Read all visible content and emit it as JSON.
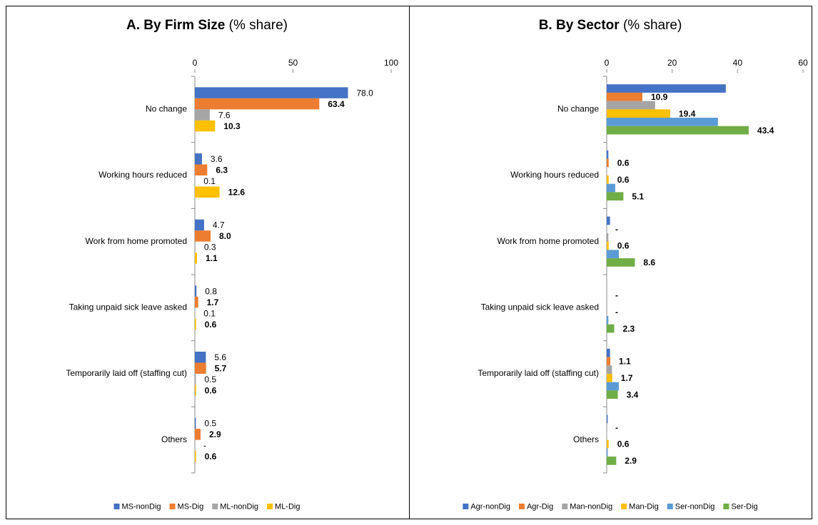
{
  "chart_data": [
    {
      "type": "bar",
      "orientation": "horizontal",
      "title": "A. By Firm Size",
      "title_unit": "(% share)",
      "categories": [
        "No change",
        "Working hours reduced",
        "Work from home promoted",
        "Taking unpaid sick leave asked",
        "Temporarily laid off (staffing cut)",
        "Others"
      ],
      "xlim": [
        0,
        100
      ],
      "xticks": [
        0,
        50,
        100
      ],
      "legend": "bottom",
      "series": [
        {
          "name": "MS-nonDig",
          "color": "#4472c4",
          "label_color": "#4472c4",
          "label_bold": false,
          "values": [
            78.0,
            3.6,
            4.7,
            0.8,
            5.6,
            0.5
          ],
          "value_labels": [
            "78.0",
            "3.6",
            "4.7",
            "0.8",
            "5.6",
            "0.5"
          ]
        },
        {
          "name": "MS-Dig",
          "color": "#ed7d31",
          "label_color": "#e00000",
          "label_bold": true,
          "values": [
            63.4,
            6.3,
            8.0,
            1.7,
            5.7,
            2.9
          ],
          "value_labels": [
            "63.4",
            "6.3",
            "8.0",
            "1.7",
            "5.7",
            "2.9"
          ]
        },
        {
          "name": "ML-nonDig",
          "color": "#a5a5a5",
          "label_color": "#000000",
          "label_bold": false,
          "values": [
            7.6,
            0.1,
            0.3,
            0.1,
            0.5,
            0
          ],
          "value_labels": [
            "7.6",
            "0.1",
            "0.3",
            "0.1",
            "0.5",
            "-"
          ]
        },
        {
          "name": "ML-Dig",
          "color": "#ffc000",
          "label_color": "#bf9000",
          "label_bold": true,
          "values": [
            10.3,
            12.6,
            1.1,
            0.6,
            0.6,
            0.6
          ],
          "value_labels": [
            "10.3",
            "12.6",
            "1.1",
            "0.6",
            "0.6",
            "0.6"
          ]
        }
      ]
    },
    {
      "type": "bar",
      "orientation": "horizontal",
      "title": "B. By Sector",
      "title_unit": "(% share)",
      "categories": [
        "No change",
        "Working hours reduced",
        "Work from home promoted",
        "Taking unpaid sick leave asked",
        "Temporarily laid off (staffing cut)",
        "Others"
      ],
      "xlim": [
        0,
        60
      ],
      "xticks": [
        0,
        20,
        40,
        60
      ],
      "legend": "bottom",
      "series": [
        {
          "name": "Agr-nonDig",
          "color": "#4472c4",
          "values": [
            36.4,
            0.5,
            1.0,
            0,
            1.0,
            0.3
          ]
        },
        {
          "name": "Agr-Dig",
          "color": "#ed7d31",
          "label_color": "#e00000",
          "label_bold": true,
          "values": [
            10.9,
            0.6,
            0,
            0,
            1.1,
            0
          ],
          "value_labels": [
            "10.9",
            "0.6",
            "-",
            "-",
            "1.1",
            "-"
          ]
        },
        {
          "name": "Man-nonDig",
          "color": "#a5a5a5",
          "values": [
            14.8,
            0.1,
            0.5,
            0,
            1.6,
            0.1
          ]
        },
        {
          "name": "Man-Dig",
          "color": "#ffc000",
          "label_color": "#bf9000",
          "label_bold": true,
          "values": [
            19.4,
            0.6,
            0.6,
            0,
            1.7,
            0.6
          ],
          "value_labels": [
            "19.4",
            "0.6",
            "0.6",
            "-",
            "1.7",
            "0.6"
          ]
        },
        {
          "name": "Ser-nonDig",
          "color": "#5b9bd5",
          "values": [
            34.0,
            2.6,
            3.7,
            0.5,
            3.7,
            0.3
          ]
        },
        {
          "name": "Ser-Dig",
          "color": "#70ad47",
          "label_color": "#548235",
          "label_bold": true,
          "values": [
            43.4,
            5.1,
            8.6,
            2.3,
            3.4,
            2.9
          ],
          "value_labels": [
            "43.4",
            "5.1",
            "8.6",
            "2.3",
            "3.4",
            "2.9"
          ]
        }
      ]
    }
  ]
}
